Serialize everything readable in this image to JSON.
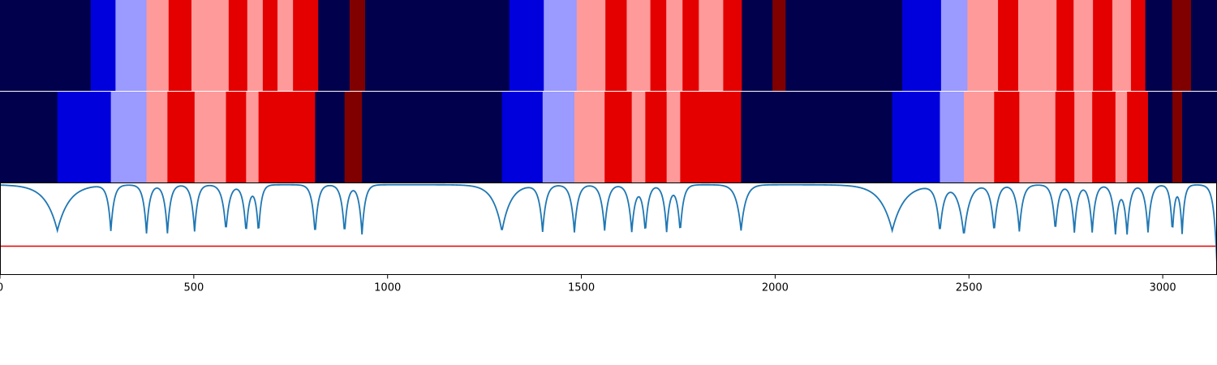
{
  "chart_data": {
    "type": "heatmap",
    "title": "",
    "xlabel": "",
    "ylabel": "",
    "xlim": [
      0,
      3140
    ],
    "x_ticks": [
      "0",
      "500",
      "1000",
      "1500",
      "2000",
      "2500",
      "3000"
    ],
    "tick_values": [
      0,
      500,
      1000,
      1500,
      2000,
      2500,
      3000
    ],
    "palette": {
      "0": "#00004c",
      "1": "#0000dd",
      "2": "#9a9aff",
      "3": "#ff9a9a",
      "4": "#e50000",
      "5": "#800000"
    },
    "row_a": [
      [
        0,
        234,
        0
      ],
      [
        234,
        298,
        1
      ],
      [
        298,
        378,
        2
      ],
      [
        378,
        435,
        3
      ],
      [
        435,
        494,
        4
      ],
      [
        494,
        590,
        3
      ],
      [
        590,
        638,
        4
      ],
      [
        638,
        678,
        3
      ],
      [
        678,
        716,
        4
      ],
      [
        716,
        756,
        3
      ],
      [
        756,
        821,
        4
      ],
      [
        821,
        902,
        0
      ],
      [
        902,
        942,
        5
      ],
      [
        942,
        1314,
        0
      ],
      [
        1314,
        1403,
        1
      ],
      [
        1403,
        1488,
        2
      ],
      [
        1488,
        1562,
        3
      ],
      [
        1562,
        1617,
        4
      ],
      [
        1617,
        1678,
        3
      ],
      [
        1678,
        1719,
        4
      ],
      [
        1719,
        1761,
        3
      ],
      [
        1761,
        1803,
        4
      ],
      [
        1803,
        1866,
        3
      ],
      [
        1866,
        1914,
        4
      ],
      [
        1914,
        1993,
        0
      ],
      [
        1993,
        2027,
        5
      ],
      [
        2027,
        2328,
        0
      ],
      [
        2328,
        2428,
        1
      ],
      [
        2428,
        2496,
        2
      ],
      [
        2496,
        2575,
        3
      ],
      [
        2575,
        2627,
        4
      ],
      [
        2627,
        2726,
        3
      ],
      [
        2726,
        2770,
        4
      ],
      [
        2770,
        2820,
        3
      ],
      [
        2820,
        2870,
        4
      ],
      [
        2870,
        2918,
        3
      ],
      [
        2918,
        2955,
        4
      ],
      [
        2955,
        3024,
        0
      ],
      [
        3024,
        3073,
        5
      ],
      [
        3073,
        3140,
        0
      ]
    ],
    "row_b": [
      [
        0,
        148,
        0
      ],
      [
        148,
        286,
        1
      ],
      [
        286,
        378,
        2
      ],
      [
        378,
        432,
        3
      ],
      [
        432,
        502,
        4
      ],
      [
        502,
        583,
        3
      ],
      [
        583,
        635,
        4
      ],
      [
        635,
        667,
        3
      ],
      [
        667,
        813,
        4
      ],
      [
        813,
        889,
        0
      ],
      [
        889,
        934,
        5
      ],
      [
        934,
        1295,
        0
      ],
      [
        1295,
        1400,
        1
      ],
      [
        1400,
        1482,
        2
      ],
      [
        1482,
        1560,
        3
      ],
      [
        1560,
        1630,
        4
      ],
      [
        1630,
        1665,
        3
      ],
      [
        1665,
        1720,
        4
      ],
      [
        1720,
        1755,
        3
      ],
      [
        1755,
        1912,
        4
      ],
      [
        1912,
        2302,
        0
      ],
      [
        2302,
        2425,
        1
      ],
      [
        2425,
        2487,
        2
      ],
      [
        2487,
        2565,
        3
      ],
      [
        2565,
        2630,
        4
      ],
      [
        2630,
        2723,
        3
      ],
      [
        2723,
        2772,
        4
      ],
      [
        2772,
        2818,
        3
      ],
      [
        2818,
        2878,
        4
      ],
      [
        2878,
        2908,
        3
      ],
      [
        2908,
        2962,
        4
      ],
      [
        2962,
        3025,
        0
      ],
      [
        3025,
        3050,
        5
      ],
      [
        3050,
        3140,
        0
      ]
    ],
    "series": [
      {
        "color": "#1f77b4",
        "baseline": 0.98,
        "dips": [
          [
            148,
            0.48,
            30
          ],
          [
            286,
            0.48,
            8
          ],
          [
            378,
            0.45,
            8
          ],
          [
            432,
            0.45,
            8
          ],
          [
            502,
            0.47,
            8
          ],
          [
            583,
            0.47,
            9
          ],
          [
            635,
            0.45,
            8
          ],
          [
            667,
            0.45,
            7
          ],
          [
            813,
            0.43,
            8
          ],
          [
            889,
            0.44,
            8
          ],
          [
            934,
            0.44,
            8
          ],
          [
            1295,
            0.47,
            22
          ],
          [
            1400,
            0.47,
            9
          ],
          [
            1482,
            0.46,
            9
          ],
          [
            1560,
            0.48,
            9
          ],
          [
            1630,
            0.47,
            9
          ],
          [
            1665,
            0.46,
            8
          ],
          [
            1720,
            0.47,
            8
          ],
          [
            1755,
            0.46,
            8
          ],
          [
            1912,
            0.48,
            12
          ],
          [
            2302,
            0.48,
            30
          ],
          [
            2425,
            0.47,
            10
          ],
          [
            2487,
            0.42,
            14
          ],
          [
            2565,
            0.46,
            9
          ],
          [
            2630,
            0.47,
            9
          ],
          [
            2723,
            0.47,
            8
          ],
          [
            2772,
            0.46,
            8
          ],
          [
            2818,
            0.46,
            8
          ],
          [
            2878,
            0.45,
            8
          ],
          [
            2908,
            0.45,
            8
          ],
          [
            2962,
            0.46,
            8
          ],
          [
            3025,
            0.45,
            6
          ],
          [
            3050,
            0.45,
            6
          ],
          [
            3140,
            0.1,
            8
          ]
        ]
      }
    ],
    "threshold": {
      "value": 0.31,
      "color": "#e50000"
    }
  }
}
